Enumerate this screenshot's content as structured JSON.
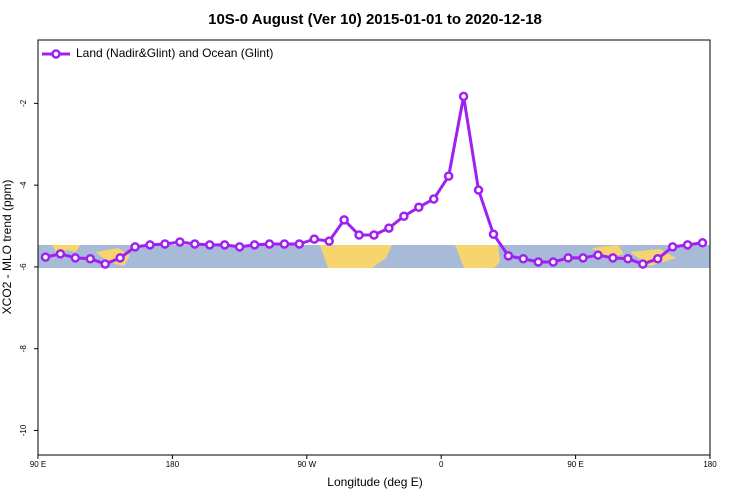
{
  "chart_data": {
    "type": "line",
    "title": "10S-0 August (Ver 10)   2015-01-01 to 2020-12-18",
    "x_label": "Longitude (deg E)",
    "y_label": "XCO2 - MLO trend (ppm)",
    "legend_position": "top-left",
    "xlim": [
      90,
      540
    ],
    "xticks": [
      {
        "value": 90,
        "label": "90 E"
      },
      180,
      {
        "value": 270,
        "label": "90 W"
      },
      {
        "value": 360,
        "label": "0"
      },
      {
        "value": 450,
        "label": "90 E"
      },
      {
        "value": 540,
        "label": "180"
      }
    ],
    "ylim": [
      -10.6,
      -0.45
    ],
    "yticks": [
      -10,
      -8,
      -6,
      -4,
      -2
    ],
    "x": [
      95,
      105,
      115,
      125,
      135,
      145,
      155,
      165,
      175,
      185,
      195,
      205,
      215,
      225,
      235,
      245,
      255,
      265,
      275,
      285,
      295,
      305,
      315,
      325,
      335,
      345,
      355,
      365,
      375,
      385,
      395,
      405,
      415,
      425,
      435,
      445,
      455,
      465,
      475,
      485,
      495,
      505,
      515,
      525,
      535
    ],
    "series": [
      {
        "name": "Land (Nadir&Glint) and Ocean (Glint)",
        "color": "#a020f0",
        "values": [
          -5.76,
          -5.68,
          -5.78,
          -5.8,
          -5.93,
          -5.78,
          -5.51,
          -5.46,
          -5.44,
          -5.39,
          -5.44,
          -5.46,
          -5.46,
          -5.51,
          -5.46,
          -5.44,
          -5.44,
          -5.44,
          -5.32,
          -5.37,
          -4.85,
          -5.22,
          -5.22,
          -5.05,
          -4.76,
          -4.54,
          -4.34,
          -3.78,
          -1.83,
          -4.12,
          -5.2,
          -5.73,
          -5.8,
          -5.88,
          -5.88,
          -5.78,
          -5.78,
          -5.71,
          -5.78,
          -5.8,
          -5.93,
          -5.8,
          -5.51,
          -5.46,
          -5.41
        ]
      }
    ]
  }
}
